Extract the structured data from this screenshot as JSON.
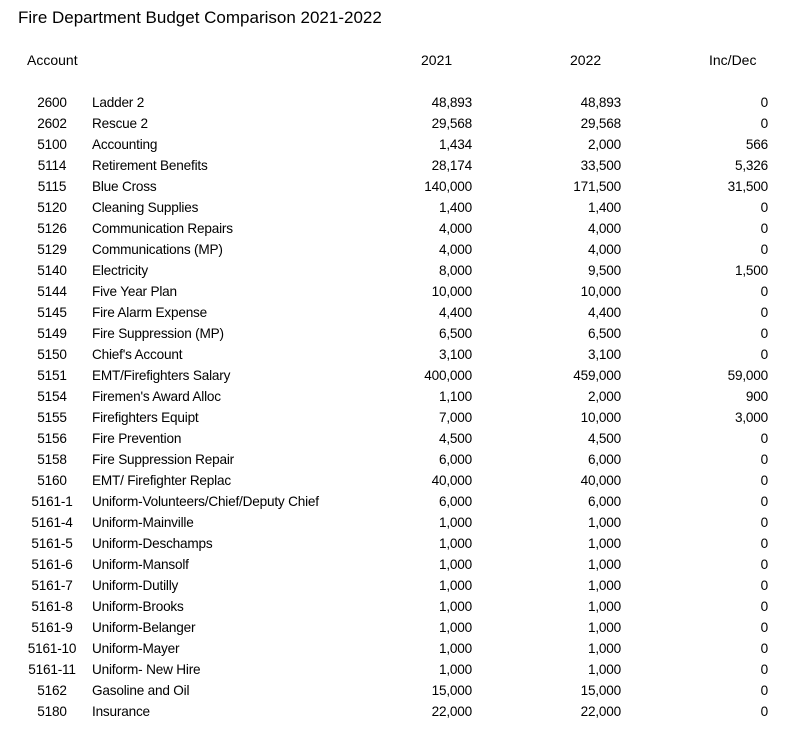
{
  "title": "Fire Department Budget Comparison 2021-2022",
  "headers": {
    "account": "Account",
    "y2021": "2021",
    "y2022": "2022",
    "incdec": "Inc/Dec"
  },
  "rows": [
    {
      "code": "2600",
      "name": "Ladder 2",
      "v2021": "48,893",
      "v2022": "48,893",
      "inc": "0"
    },
    {
      "code": "2602",
      "name": "Rescue 2",
      "v2021": "29,568",
      "v2022": "29,568",
      "inc": "0"
    },
    {
      "code": "5100",
      "name": "Accounting",
      "v2021": "1,434",
      "v2022": "2,000",
      "inc": "566"
    },
    {
      "code": "5114",
      "name": "Retirement Benefits",
      "v2021": "28,174",
      "v2022": "33,500",
      "inc": "5,326"
    },
    {
      "code": "5115",
      "name": "Blue Cross",
      "v2021": "140,000",
      "v2022": "171,500",
      "inc": "31,500"
    },
    {
      "code": "5120",
      "name": "Cleaning Supplies",
      "v2021": "1,400",
      "v2022": "1,400",
      "inc": "0"
    },
    {
      "code": "5126",
      "name": "Communication Repairs",
      "v2021": "4,000",
      "v2022": "4,000",
      "inc": "0"
    },
    {
      "code": "5129",
      "name": "Communications (MP)",
      "v2021": "4,000",
      "v2022": "4,000",
      "inc": "0"
    },
    {
      "code": "5140",
      "name": "Electricity",
      "v2021": "8,000",
      "v2022": "9,500",
      "inc": "1,500"
    },
    {
      "code": "5144",
      "name": "Five Year Plan",
      "v2021": "10,000",
      "v2022": "10,000",
      "inc": "0"
    },
    {
      "code": "5145",
      "name": "Fire Alarm Expense",
      "v2021": "4,400",
      "v2022": "4,400",
      "inc": "0"
    },
    {
      "code": "5149",
      "name": "Fire Suppression (MP)",
      "v2021": "6,500",
      "v2022": "6,500",
      "inc": "0"
    },
    {
      "code": "5150",
      "name": "Chief's Account",
      "v2021": "3,100",
      "v2022": "3,100",
      "inc": "0"
    },
    {
      "code": "5151",
      "name": "EMT/Firefighters Salary",
      "v2021": "400,000",
      "v2022": "459,000",
      "inc": "59,000"
    },
    {
      "code": "5154",
      "name": "Firemen's Award Alloc",
      "v2021": "1,100",
      "v2022": "2,000",
      "inc": "900"
    },
    {
      "code": "5155",
      "name": "Firefighters Equipt",
      "v2021": "7,000",
      "v2022": "10,000",
      "inc": "3,000"
    },
    {
      "code": "5156",
      "name": "Fire Prevention",
      "v2021": "4,500",
      "v2022": "4,500",
      "inc": "0"
    },
    {
      "code": "5158",
      "name": "Fire Suppression Repair",
      "v2021": "6,000",
      "v2022": "6,000",
      "inc": "0"
    },
    {
      "code": "5160",
      "name": "EMT/ Firefighter Replac",
      "v2021": "40,000",
      "v2022": "40,000",
      "inc": "0"
    },
    {
      "code": "5161-1",
      "name": "Uniform-Volunteers/Chief/Deputy Chief",
      "v2021": "6,000",
      "v2022": "6,000",
      "inc": "0"
    },
    {
      "code": "5161-4",
      "name": "Uniform-Mainville",
      "v2021": "1,000",
      "v2022": "1,000",
      "inc": "0"
    },
    {
      "code": "5161-5",
      "name": "Uniform-Deschamps",
      "v2021": "1,000",
      "v2022": "1,000",
      "inc": "0"
    },
    {
      "code": "5161-6",
      "name": "Uniform-Mansolf",
      "v2021": "1,000",
      "v2022": "1,000",
      "inc": "0"
    },
    {
      "code": "5161-7",
      "name": "Uniform-Dutilly",
      "v2021": "1,000",
      "v2022": "1,000",
      "inc": "0"
    },
    {
      "code": "5161-8",
      "name": "Uniform-Brooks",
      "v2021": "1,000",
      "v2022": "1,000",
      "inc": "0"
    },
    {
      "code": "5161-9",
      "name": "Uniform-Belanger",
      "v2021": "1,000",
      "v2022": "1,000",
      "inc": "0"
    },
    {
      "code": "5161-10",
      "name": "Uniform-Mayer",
      "v2021": "1,000",
      "v2022": "1,000",
      "inc": "0"
    },
    {
      "code": "5161-11",
      "name": "Uniform- New Hire",
      "v2021": "1,000",
      "v2022": "1,000",
      "inc": "0"
    },
    {
      "code": "5162",
      "name": "Gasoline and Oil",
      "v2021": "15,000",
      "v2022": "15,000",
      "inc": "0"
    },
    {
      "code": "5180",
      "name": "Insurance",
      "v2021": "22,000",
      "v2022": "22,000",
      "inc": "0"
    }
  ]
}
